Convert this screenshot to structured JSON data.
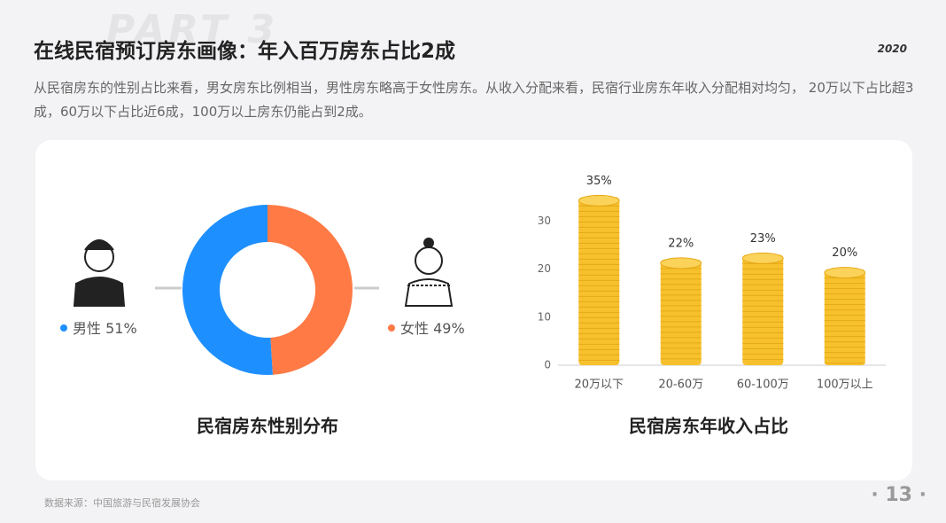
{
  "header": {
    "watermark": "PART 3",
    "title": "在线民宿预订房东画像：年入百万房东占比2成",
    "year": "2020",
    "description": "从民宿房东的性别占比来看，男女房东比例相当，男性房东略高于女性房东。从收入分配来看，民宿行业房东年收入分配相对均匀， 20万以下占比超3成，60万以下占比近6成，100万以上房东仍能占到2成。"
  },
  "chart_data": [
    {
      "type": "donut",
      "title": "民宿房东性别分布",
      "series": [
        {
          "name": "男性",
          "color": "#1e8fff",
          "values": [
            51
          ],
          "value_labels": [
            "51%"
          ]
        },
        {
          "name": "女性",
          "color": "#ff7a45",
          "values": [
            49
          ],
          "value_labels": [
            "49%"
          ]
        }
      ]
    },
    {
      "type": "bar",
      "title": "民宿房东年收入占比",
      "categories": [
        "20万以下",
        "20-60万",
        "60-100万",
        "100万以上"
      ],
      "values": [
        35,
        22,
        23,
        20
      ],
      "value_labels": [
        "35%",
        "22%",
        "23%",
        "20%"
      ],
      "color": "#f7c12e",
      "ylim": [
        0,
        36
      ],
      "yticks": [
        0,
        10,
        20,
        30
      ]
    }
  ],
  "footer": {
    "source": "数据来源：中国旅游与民宿发展协会",
    "page": "13"
  }
}
